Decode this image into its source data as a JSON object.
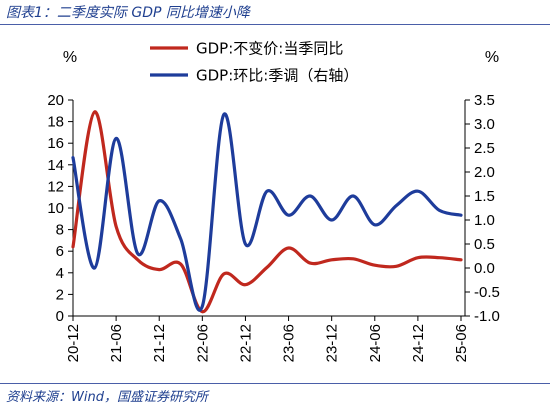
{
  "header": {
    "title": "图表1：二季度实际 GDP 同比增速小降"
  },
  "footer": {
    "source": "资料来源：Wind，国盛证券研究所"
  },
  "chart_data": {
    "type": "line",
    "x_tick_labels": [
      "20-12",
      "21-06",
      "21-12",
      "22-06",
      "22-12",
      "23-06",
      "23-12",
      "24-06",
      "24-12",
      "25-06"
    ],
    "x_tick_index": [
      0,
      2,
      4,
      6,
      8,
      10,
      12,
      14,
      16,
      18
    ],
    "y_left": {
      "unit": "%",
      "ylim": [
        0,
        20
      ],
      "ticks": [
        0,
        2,
        4,
        6,
        8,
        10,
        12,
        14,
        16,
        18,
        20
      ]
    },
    "y_right": {
      "unit": "%",
      "ylim": [
        -1.0,
        3.5
      ],
      "ticks": [
        "-1.0",
        "-0.5",
        "0.0",
        "0.5",
        "1.0",
        "1.5",
        "2.0",
        "2.5",
        "3.0",
        "3.5"
      ]
    },
    "grid": false,
    "legend_position": "top-center",
    "series": [
      {
        "name": "GDP:不变价:当季同比",
        "axis": "left",
        "color": "#c0281e",
        "x": [
          0,
          1,
          2,
          3,
          4,
          5,
          6,
          7,
          8,
          9,
          10,
          11,
          12,
          13,
          14,
          15,
          16,
          17,
          18
        ],
        "values": [
          6.4,
          18.9,
          8.3,
          5.2,
          4.3,
          4.8,
          0.4,
          3.9,
          2.9,
          4.5,
          6.3,
          4.9,
          5.2,
          5.3,
          4.7,
          4.6,
          5.4,
          5.4,
          5.2
        ]
      },
      {
        "name": "GDP:环比:季调（右轴）",
        "axis": "right",
        "color": "#1e3c9b",
        "x": [
          0,
          1,
          2,
          3,
          4,
          5,
          6,
          7,
          8,
          9,
          10,
          11,
          12,
          13,
          14,
          15,
          16,
          17,
          18
        ],
        "values": [
          2.3,
          0.0,
          2.7,
          0.3,
          1.4,
          0.6,
          -0.8,
          3.2,
          0.5,
          1.6,
          1.1,
          1.5,
          1.0,
          1.5,
          0.9,
          1.3,
          1.6,
          1.2,
          1.1
        ]
      }
    ]
  }
}
